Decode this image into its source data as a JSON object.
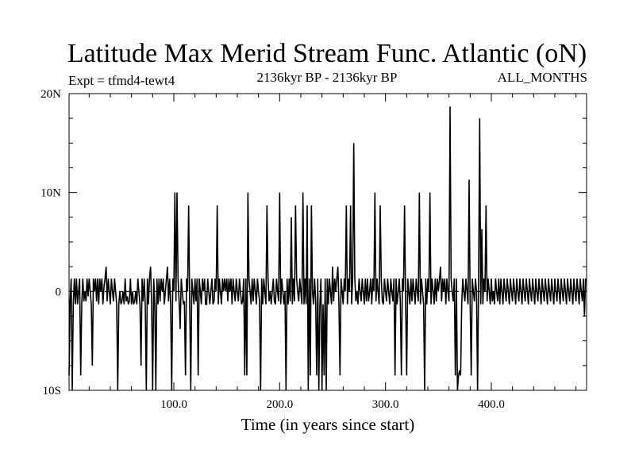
{
  "chart_data": {
    "type": "line",
    "title": "Latitude Max Merid Stream Func. Atlantic (oN)",
    "subtitle_left": "Expt = tfmd4-tewt4",
    "subtitle_center": "2136kyr BP - 2136kyr BP",
    "subtitle_right": "ALL_MONTHS",
    "xlabel": "Time (in years since start)",
    "ylabel": "",
    "xlim": [
      1,
      490
    ],
    "ylim": [
      -10,
      20
    ],
    "x_ticks": [
      {
        "value": 100,
        "label": "100.0"
      },
      {
        "value": 200,
        "label": "200.0"
      },
      {
        "value": 300,
        "label": "300.0"
      },
      {
        "value": 400,
        "label": "400.0"
      }
    ],
    "y_ticks": [
      {
        "value": -10,
        "label": "10S"
      },
      {
        "value": 0,
        "label": "0"
      },
      {
        "value": 10,
        "label": "10N"
      },
      {
        "value": 20,
        "label": "20N"
      }
    ],
    "reference_line": 0,
    "series": [
      {
        "color": "#000000",
        "x_start": 1,
        "x_step": 1,
        "values": [
          -8.5,
          -1,
          1.3,
          -10,
          -1.3,
          1.3,
          -1.3,
          1.3,
          -1.3,
          0,
          1.3,
          -8.5,
          -1.3,
          1.3,
          -1,
          0,
          -1,
          1.3,
          -0.5,
          1.3,
          0,
          -1.3,
          -7.5,
          1.3,
          0,
          1.3,
          -1,
          1.3,
          -1.3,
          1.3,
          0,
          1.3,
          -1.3,
          0.5,
          1.3,
          2.5,
          -1,
          1.3,
          0,
          -1.3,
          1.3,
          0,
          -1,
          1.3,
          0,
          -1.3,
          -10,
          -1.3,
          0,
          -1.3,
          -1,
          0,
          -1.3,
          1.3,
          -1,
          -0.5,
          -1.3,
          -1,
          1.3,
          -1.3,
          0,
          -1.3,
          -1,
          0,
          -1.3,
          1.3,
          0,
          -1.3,
          -7.5,
          1.3,
          -1,
          1.3,
          -1.3,
          -10,
          1.3,
          -1.3,
          1.3,
          2.5,
          -1,
          -10,
          1.3,
          -1.3,
          -10,
          1.3,
          -1.3,
          1.3,
          -1,
          1.3,
          0,
          1.3,
          -1.3,
          0,
          1.3,
          2.5,
          -1,
          1.3,
          -1.3,
          -10,
          1.3,
          0,
          10,
          -1,
          10,
          1.3,
          -1,
          -3.8,
          1.3,
          0,
          -1.3,
          -1,
          -8.5,
          1.3,
          0,
          8.7,
          -1.3,
          -10,
          1.3,
          0,
          -1.3,
          1.3,
          -1,
          1.3,
          -8.5,
          1.3,
          0,
          -1.3,
          1.3,
          0,
          1.3,
          -1.3,
          -1.3,
          1.3,
          0,
          -1.3,
          0,
          1.3,
          -1.3,
          -1,
          1.3,
          0,
          8.7,
          -1.3,
          1.3,
          0,
          -1.3,
          1.3,
          0,
          1.3,
          0,
          1.3,
          -1,
          1.3,
          0,
          1.3,
          -1.3,
          1.3,
          0,
          -1,
          1.3,
          0,
          -1,
          1.3,
          0,
          -1.3,
          -1,
          1.3,
          -8.5,
          1.3,
          -8.5,
          10,
          1.3,
          0,
          -1.3,
          1.3,
          -1,
          1.3,
          0,
          -1.3,
          1.3,
          0,
          -1,
          -10,
          1.3,
          -1.3,
          1.3,
          0,
          -1.3,
          8.7,
          1.3,
          -1,
          0,
          -1.3,
          0,
          1.3,
          -1,
          -1.3,
          1.3,
          0,
          -1,
          10,
          -1.3,
          1.3,
          0,
          -1.3,
          0,
          -10,
          1.3,
          -1.3,
          1.3,
          -1,
          7.5,
          -1.3,
          1.3,
          -1,
          8.7,
          1.3,
          0,
          -1,
          1.3,
          0,
          -1.3,
          10,
          -1.3,
          1.3,
          -1.3,
          8.7,
          -10,
          1.3,
          -8.5,
          8.7,
          0,
          -1.3,
          1.3,
          -1,
          -8.5,
          1.3,
          -10,
          -1.3,
          1.3,
          -10,
          -1.3,
          -8.5,
          1.3,
          -10,
          1.3,
          -1.3,
          1.3,
          0,
          -1.3,
          2.5,
          -1,
          1.3,
          0,
          1.3,
          2.5,
          -1.3,
          -8.5,
          1.3,
          0,
          -1.3,
          1.3,
          0,
          8.7,
          -1.3,
          1.3,
          0,
          8.7,
          -1.3,
          1.3,
          15,
          1.3,
          -1,
          0,
          -1.3,
          1.3,
          0,
          -1,
          1.3,
          0,
          -1.3,
          1.3,
          -1,
          1.3,
          -1,
          0,
          1.3,
          -1.3,
          1.3,
          0,
          10,
          -1,
          1.3,
          0,
          -1.3,
          8.7,
          1.3,
          -1,
          -1.3,
          1.3,
          0,
          -1,
          1.3,
          0,
          -1.3,
          1.3,
          0,
          -1,
          1.3,
          -8.5,
          1.3,
          -1.3,
          0,
          1.3,
          -1,
          -8.5,
          1.3,
          0,
          8.7,
          -1,
          -8.5,
          1.3,
          0,
          -1.3,
          1.3,
          -1,
          1.3,
          0,
          -1.3,
          1.3,
          0,
          -1,
          10,
          -1.3,
          1.3,
          0,
          -1.3,
          -10,
          1.3,
          -1.3,
          1.3,
          0,
          10,
          -1.3,
          1.3,
          0,
          -1.3,
          1.3,
          -1,
          1.3,
          0,
          1.3,
          2.5,
          -1,
          1.3,
          0,
          1.3,
          -1.3,
          1.3,
          0,
          -1,
          18.7,
          1.3,
          0,
          -1,
          1.3,
          -8.5,
          1.3,
          -10,
          -8.5,
          -8.0,
          -8.5,
          -1.3,
          1.3,
          0,
          -1,
          1.3,
          0,
          -1.3,
          11.3,
          -1.3,
          -8.5,
          1.3,
          0,
          -1,
          1.3,
          0,
          -10,
          1.3,
          17.5,
          -1.3,
          6.3,
          -1.3,
          1.3,
          0,
          8.7,
          -1,
          1.3,
          0,
          -1.3,
          1.3,
          -1,
          0,
          -1.3,
          1.3,
          0,
          -1,
          1.3,
          -1.3,
          1.3,
          0,
          -1.3,
          1.3,
          0,
          -1,
          1.3,
          0,
          -1.3,
          1.3,
          0,
          -1,
          1.3,
          0,
          -1.3,
          1.3,
          0,
          -1,
          1.3,
          0,
          -1.3,
          1.3,
          0,
          -1,
          1.3,
          0,
          -1.3,
          1.3,
          0,
          -1,
          1.3,
          0,
          -1.3,
          1.3,
          0,
          -1,
          1.3,
          0,
          -1.3,
          1.3,
          0,
          -1,
          1.3,
          0,
          -1.3,
          1.3,
          0,
          -1,
          1.3,
          0,
          -1.3,
          1.3,
          0,
          -1,
          1.3,
          0,
          -1.3,
          1.3,
          0,
          -1,
          1.3,
          0,
          -1.3,
          1.3,
          0,
          -1,
          1.3,
          0,
          -1.3,
          1.3,
          0,
          -1,
          1.3,
          0,
          -1.3,
          1.3,
          0,
          -1,
          1.3,
          -2.5,
          1.3
        ]
      }
    ]
  }
}
